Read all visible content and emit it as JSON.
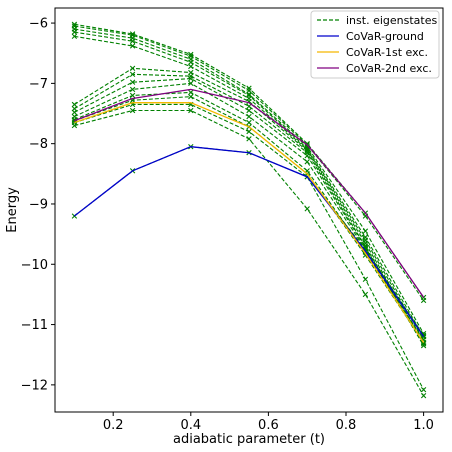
{
  "chart_data": {
    "type": "line",
    "xlabel": "adiabatic parameter (t)",
    "ylabel": "Energy",
    "xlim": [
      0.05,
      1.05
    ],
    "ylim": [
      -12.45,
      -5.75
    ],
    "xticks": [
      0.2,
      0.4,
      0.6,
      0.8,
      1.0
    ],
    "xtick_labels": [
      "0.2",
      "0.4",
      "0.6",
      "0.8",
      "1.0"
    ],
    "yticks": [
      -12,
      -11,
      -10,
      -9,
      -8,
      -7,
      -6
    ],
    "ytick_labels": [
      "−12",
      "−11",
      "−10",
      "−9",
      "−8",
      "−7",
      "−6"
    ],
    "grid": false,
    "legend_position": "top-right",
    "x": [
      0.1,
      0.25,
      0.4,
      0.55,
      0.7,
      0.85,
      1.0
    ],
    "eigenstates_label": "inst. eigenstates",
    "eigenstates": [
      [
        -6.02,
        -6.18,
        -6.52,
        -7.08,
        -8.0,
        -9.15,
        -10.55
      ],
      [
        -6.05,
        -6.2,
        -6.55,
        -7.12,
        -8.02,
        -9.2,
        -10.6
      ],
      [
        -6.1,
        -6.25,
        -6.6,
        -7.18,
        -8.05,
        -9.45,
        -11.15
      ],
      [
        -6.15,
        -6.3,
        -6.65,
        -7.2,
        -8.08,
        -9.55,
        -11.2
      ],
      [
        -6.22,
        -6.38,
        -6.72,
        -7.25,
        -8.1,
        -9.6,
        -11.25
      ],
      [
        -7.35,
        -6.75,
        -6.82,
        -7.3,
        -8.12,
        -9.65,
        -11.3
      ],
      [
        -7.42,
        -6.85,
        -6.88,
        -7.38,
        -8.15,
        -9.7,
        -11.32
      ],
      [
        -7.48,
        -6.98,
        -6.92,
        -7.45,
        -8.2,
        -9.72,
        -11.35
      ],
      [
        -7.55,
        -7.1,
        -7.0,
        -7.55,
        -8.3,
        -9.75,
        -11.2
      ],
      [
        -7.6,
        -7.2,
        -7.15,
        -7.65,
        -8.45,
        -9.8,
        -11.25
      ],
      [
        -7.62,
        -7.28,
        -7.22,
        -7.72,
        -8.5,
        -9.85,
        -11.3
      ],
      [
        -7.65,
        -7.35,
        -7.35,
        -7.8,
        -8.55,
        -10.25,
        -12.08
      ],
      [
        -7.7,
        -7.45,
        -7.45,
        -7.92,
        -9.08,
        -10.5,
        -12.18
      ],
      [
        -9.2,
        -8.45,
        -8.05,
        -8.15,
        -8.55,
        -9.75,
        -11.18
      ]
    ],
    "series": [
      {
        "name": "CoVaR-ground",
        "color": "#0000cc",
        "values": [
          -9.2,
          -8.45,
          -8.05,
          -8.15,
          -8.55,
          -9.78,
          -11.2
        ]
      },
      {
        "name": "CoVaR-1st exc.",
        "color": "#f5b800",
        "values": [
          -7.65,
          -7.32,
          -7.32,
          -7.72,
          -8.5,
          -9.82,
          -11.3
        ]
      },
      {
        "name": "CoVaR-2nd exc.",
        "color": "#800080",
        "values": [
          -7.62,
          -7.25,
          -7.1,
          -7.32,
          -8.02,
          -9.15,
          -10.55
        ]
      }
    ],
    "eigenstate_color": "#008000"
  }
}
